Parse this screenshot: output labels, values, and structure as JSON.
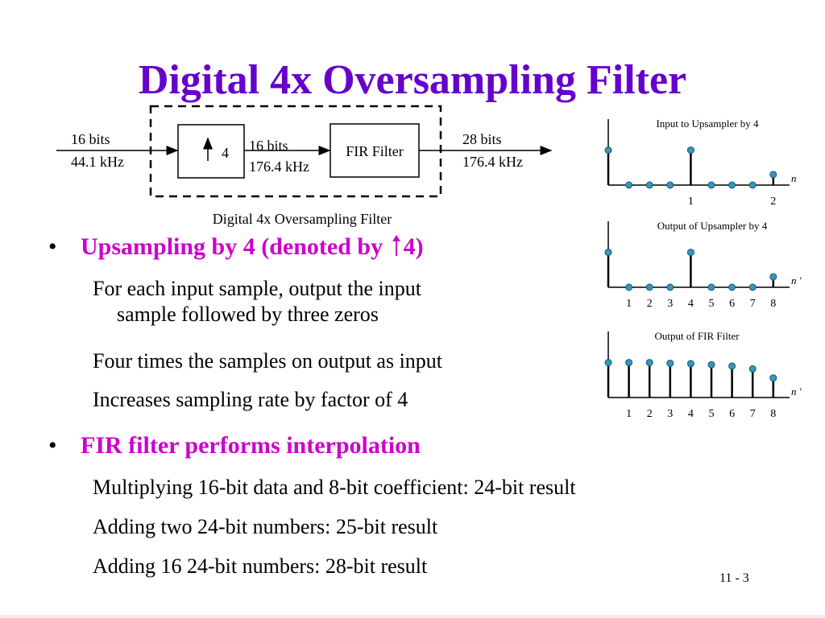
{
  "slide": {
    "title": "Digital 4x Oversampling Filter",
    "page_number": "11 - 3"
  },
  "diagram": {
    "input_bits": "16 bits",
    "input_rate": "44.1 kHz",
    "upsampler_factor": "4",
    "mid_bits": "16 bits",
    "mid_rate": "176.4 kHz",
    "fir_label": "FIR Filter",
    "output_bits": "28 bits",
    "output_rate": "176.4 kHz",
    "caption": "Digital 4x Oversampling Filter"
  },
  "plots": [
    {
      "title": "Input to Upsampler by 4",
      "axis_var": "n",
      "tick_labels": [
        "1",
        "2"
      ],
      "stems": [
        1.0,
        0.0,
        0.0,
        0.0,
        1.0,
        0.0,
        0.0,
        0.0,
        0.3
      ]
    },
    {
      "title": "Output of Upsampler by 4",
      "axis_var": "n '",
      "tick_labels": [
        "1",
        "2",
        "3",
        "4",
        "5",
        "6",
        "7",
        "8"
      ],
      "stems": [
        1.0,
        0.0,
        0.0,
        0.0,
        1.0,
        0.0,
        0.0,
        0.0,
        0.3
      ]
    },
    {
      "title": "Output of FIR Filter",
      "axis_var": "n '",
      "tick_labels": [
        "1",
        "2",
        "3",
        "4",
        "5",
        "6",
        "7",
        "8"
      ],
      "stems": [
        1.0,
        1.0,
        1.0,
        0.98,
        0.97,
        0.94,
        0.9,
        0.82,
        0.56
      ]
    }
  ],
  "bullets": [
    {
      "text_before": "Upsampling by 4 (denoted by ",
      "text_after": "4)",
      "subitems": [
        [
          "For each input sample, output the input",
          "sample followed by three zeros"
        ],
        [
          "Four times the samples on output as input"
        ],
        [
          "Increases sampling rate by factor of 4"
        ]
      ]
    },
    {
      "text": "FIR filter performs interpolation",
      "subitems": [
        [
          "Multiplying 16-bit data and 8-bit coefficient: 24-bit result"
        ],
        [
          "Adding two 24-bit numbers: 25-bit result"
        ],
        [
          "Adding 16 24-bit numbers: 28-bit result"
        ]
      ]
    }
  ],
  "colors": {
    "title": "#6600cc",
    "bullet": "#cc00cc",
    "stem_marker": "#3399bb"
  }
}
